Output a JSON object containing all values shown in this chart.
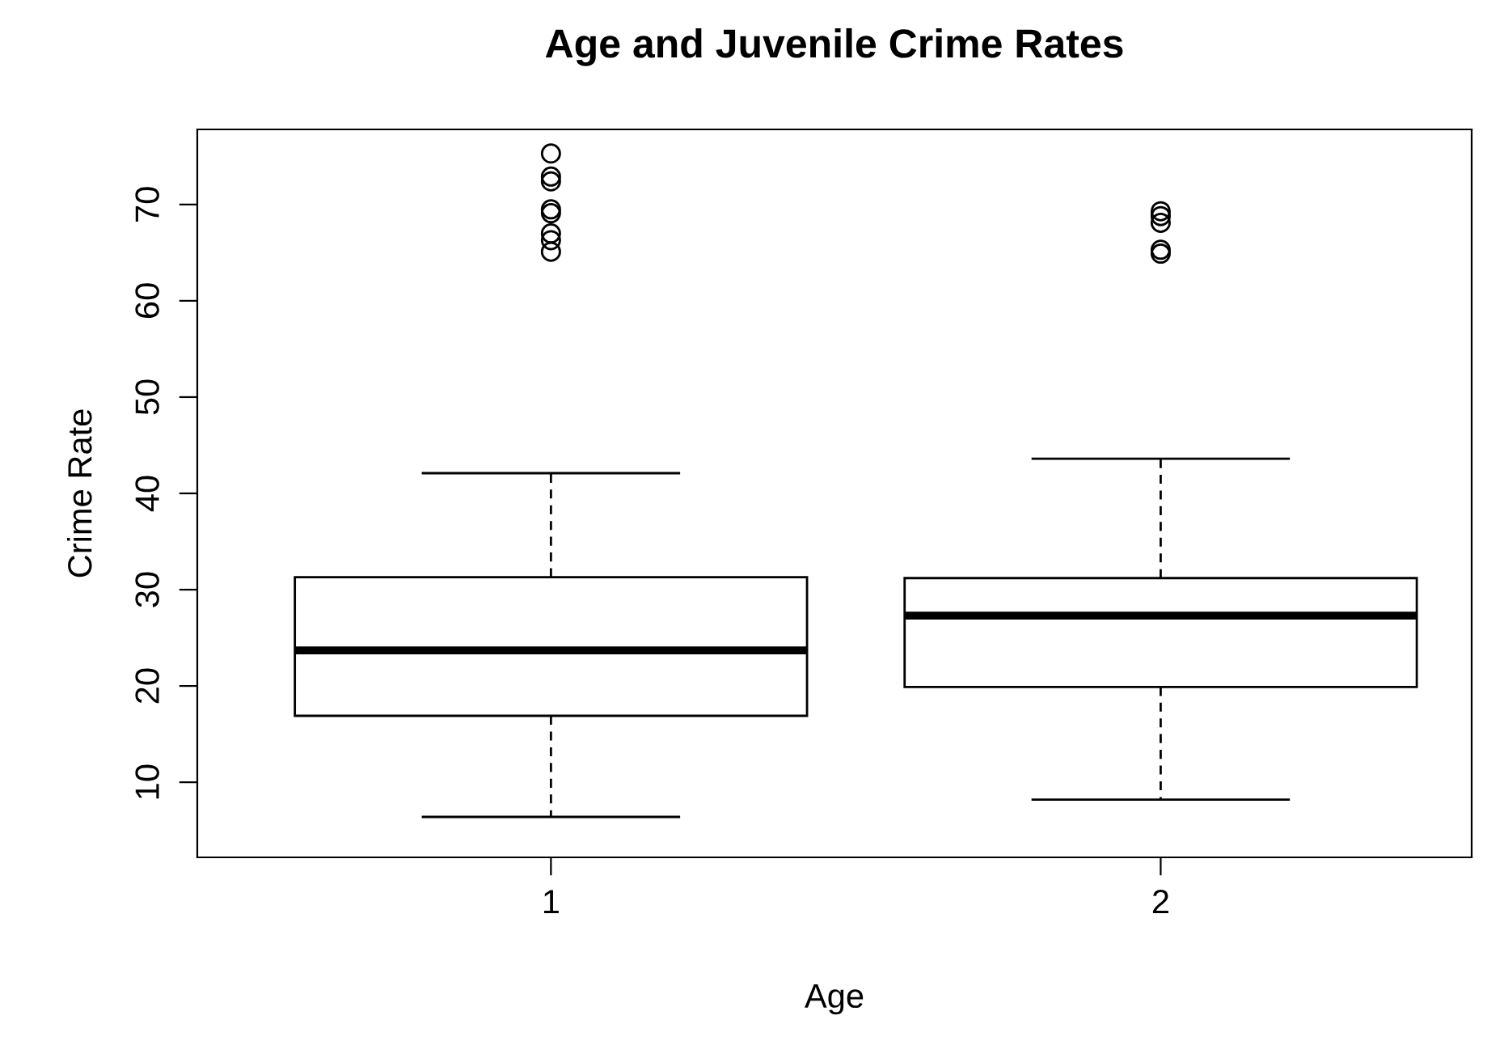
{
  "chart_data": {
    "type": "box",
    "title": "Age and Juvenile Crime Rates",
    "xlabel": "Age",
    "ylabel": "Crime Rate",
    "categories": [
      "1",
      "2"
    ],
    "boxes": [
      {
        "low": 6.4,
        "q1": 16.9,
        "median": 23.7,
        "q3": 31.3,
        "high": 42.1,
        "outliers": [
          75.3,
          72.9,
          72.4,
          69.5,
          69.1,
          67.0,
          66.3,
          65.1
        ]
      },
      {
        "low": 8.2,
        "q1": 19.9,
        "median": 27.3,
        "q3": 31.2,
        "high": 43.6,
        "outliers": [
          69.3,
          68.8,
          68.1,
          65.3,
          64.9
        ]
      }
    ],
    "color": "#ffffff",
    "ylim": [
      2.2,
      77.8
    ],
    "yticks": [
      10,
      20,
      30,
      40,
      50,
      60,
      70
    ],
    "grid": false
  }
}
